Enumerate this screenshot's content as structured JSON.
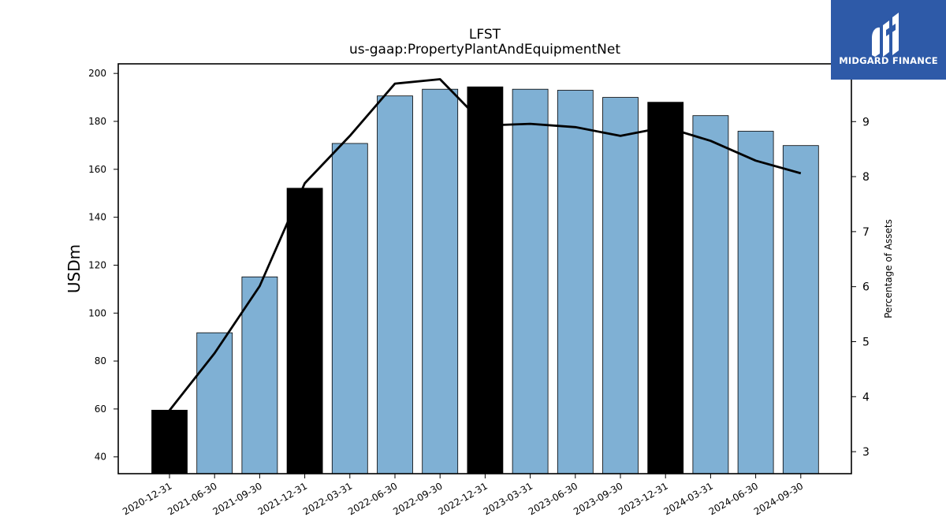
{
  "logo": {
    "text": "MIDGARD FINANCE",
    "icon": "midgard-mark-icon",
    "background": "#2e5aa8"
  },
  "chart_data": {
    "type": "bar",
    "title": "LFST",
    "subtitle": "us-gaap:PropertyPlantAndEquipmentNet",
    "ylabel": "USDm",
    "ylabel_right": "Percentage of Assets",
    "categories": [
      "2020-12-31",
      "2021-06-30",
      "2021-09-30",
      "2021-12-31",
      "2022-03-31",
      "2022-06-30",
      "2022-09-30",
      "2022-12-31",
      "2023-03-31",
      "2023-06-30",
      "2023-09-30",
      "2023-12-31",
      "2024-03-31",
      "2024-06-30",
      "2024-09-30"
    ],
    "series": [
      {
        "type": "bar",
        "axis": "left",
        "values": [
          59.5,
          91.8,
          115.1,
          152.1,
          170.8,
          190.6,
          193.4,
          194.4,
          193.4,
          193.0,
          190.0,
          188.0,
          182.4,
          175.9,
          169.9
        ],
        "colors": [
          "#000000",
          "#7fb0d4",
          "#7fb0d4",
          "#000000",
          "#7fb0d4",
          "#7fb0d4",
          "#7fb0d4",
          "#000000",
          "#7fb0d4",
          "#7fb0d4",
          "#7fb0d4",
          "#000000",
          "#7fb0d4",
          "#7fb0d4",
          "#7fb0d4"
        ]
      },
      {
        "type": "line",
        "axis": "right",
        "color": "#000000",
        "values": [
          3.75,
          4.79,
          6.01,
          7.88,
          8.74,
          9.69,
          9.77,
          8.93,
          8.96,
          8.9,
          8.74,
          8.9,
          8.65,
          8.29,
          8.06
        ]
      }
    ],
    "ylim": [
      33,
      204
    ],
    "ylim_right": [
      2.6,
      10.05
    ],
    "yticks": [
      40,
      60,
      80,
      100,
      120,
      140,
      160,
      180,
      200
    ],
    "yticks_right": [
      3,
      4,
      5,
      6,
      7,
      8,
      9
    ],
    "bar_colors": {
      "quarter": "#7fb0d4",
      "year_end": "#000000"
    },
    "grid": false,
    "legend": "none"
  }
}
